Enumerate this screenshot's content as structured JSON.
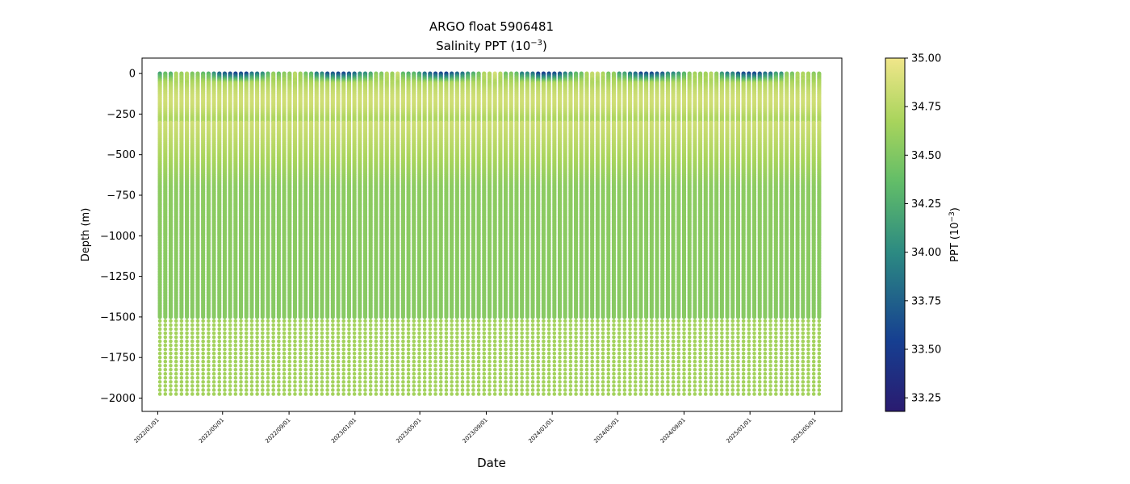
{
  "chart_data": {
    "type": "scatter",
    "title": "ARGO float 5906481",
    "subtitle": "Salinity PPT (10",
    "subtitle_sup": "−3",
    "subtitle_end": ")",
    "xlabel": "Date",
    "ylabel": "Depth (m)",
    "xlim": [
      "2021-12-03",
      "2025-06-20"
    ],
    "ylim": [
      -2082,
      95
    ],
    "x_ticks": [
      "2022/01/01",
      "2022/05/01",
      "2022/09/01",
      "2023/01/01",
      "2023/05/01",
      "2023/09/01",
      "2024/01/01",
      "2024/05/01",
      "2024/09/01",
      "2025/01/01",
      "2025/05/01"
    ],
    "y_ticks": [
      0,
      -250,
      -500,
      -750,
      -1000,
      -1250,
      -1500,
      -1750,
      -2000
    ],
    "y_tick_labels": [
      "0",
      "−250",
      "−500",
      "−750",
      "−1000",
      "−1250",
      "−1500",
      "−1750",
      "−2000"
    ],
    "colorbar": {
      "label": "PPT (10",
      "label_sup": "−3",
      "label_end": ")",
      "range": [
        33.18,
        35.0
      ],
      "ticks": [
        35.0,
        34.75,
        34.5,
        34.25,
        34.0,
        33.75,
        33.5,
        33.25
      ],
      "tick_labels": [
        "35.00",
        "34.75",
        "34.50",
        "34.25",
        "34.00",
        "33.75",
        "33.50",
        "33.25"
      ],
      "colormap": "summer-to-navy"
    },
    "profiles": {
      "first_date": "2022-01-05",
      "last_date": "2025-05-14",
      "interval_days": 10,
      "count": 120,
      "min_depth": 0,
      "max_depth": -1975,
      "surface_salinity_range": [
        33.2,
        34.9
      ],
      "subsurface_max_salinity": 34.85,
      "subsurface_max_depth": -200,
      "deep_salinity": 34.55,
      "vertical_resolution_m": [
        [
          0,
          10
        ],
        [
          -1000,
          10
        ],
        [
          -1500,
          50
        ],
        [
          -2000,
          25
        ]
      ]
    }
  }
}
